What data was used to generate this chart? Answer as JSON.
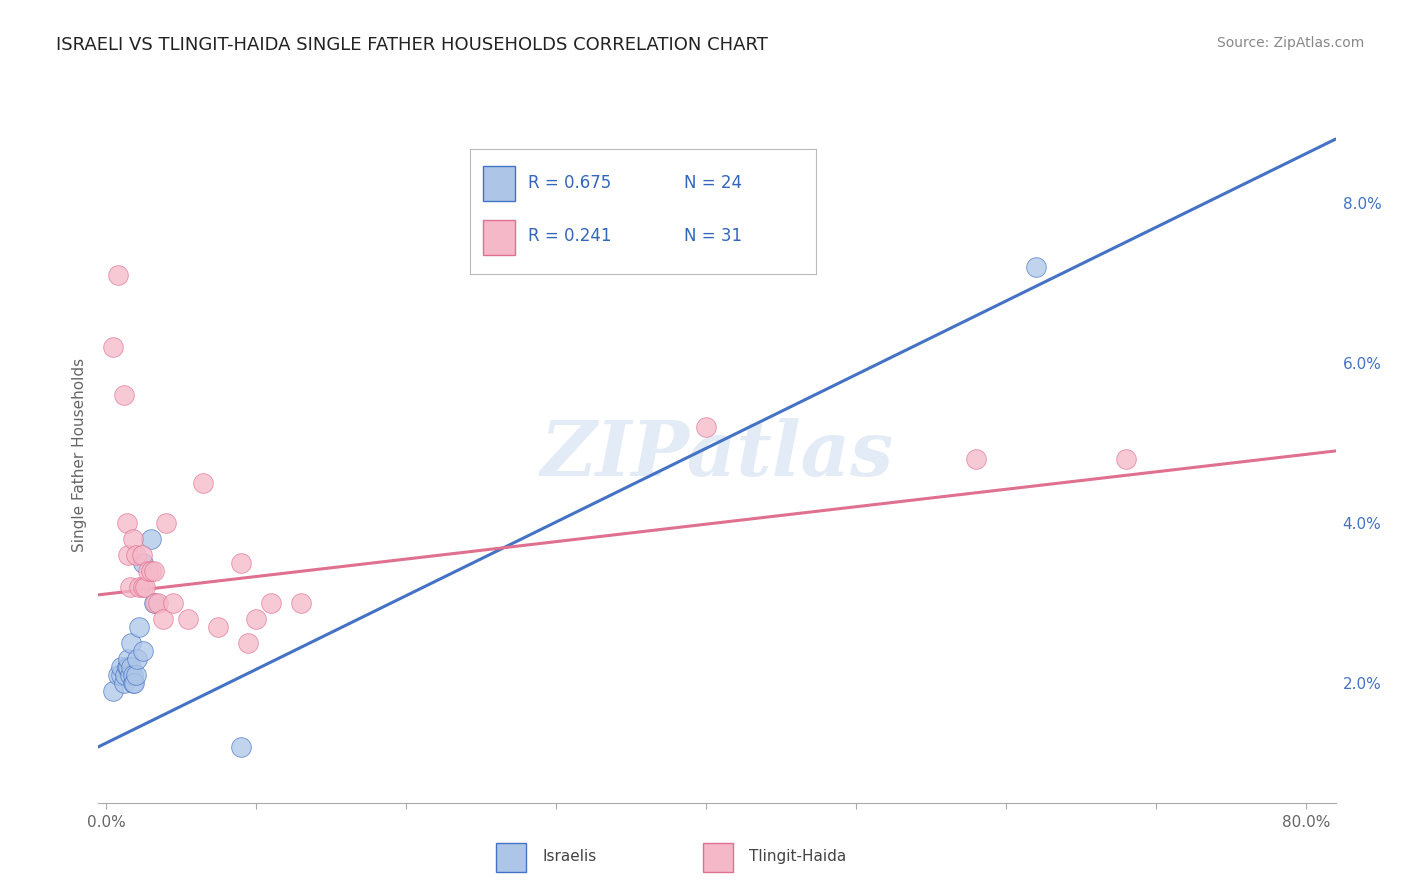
{
  "title": "ISRAELI VS TLINGIT-HAIDA SINGLE FATHER HOUSEHOLDS CORRELATION CHART",
  "source_text": "Source: ZipAtlas.com",
  "ylabel": "Single Father Households",
  "xlim": [
    -0.005,
    0.82
  ],
  "ylim": [
    0.005,
    0.092
  ],
  "x_ticks": [
    0.0,
    0.1,
    0.2,
    0.3,
    0.4,
    0.5,
    0.6,
    0.7,
    0.8
  ],
  "x_tick_labels": [
    "0.0%",
    "",
    "",
    "",
    "",
    "",
    "",
    "",
    "80.0%"
  ],
  "y_ticks": [
    0.02,
    0.04,
    0.06,
    0.08
  ],
  "y_tick_labels": [
    "2.0%",
    "4.0%",
    "6.0%",
    "8.0%"
  ],
  "legend_R_israeli": "R = 0.675",
  "legend_N_israeli": "N = 24",
  "legend_R_tlingit": "R = 0.241",
  "legend_N_tlingit": "N = 31",
  "israeli_color": "#adc6e8",
  "tlingit_color": "#f5b8c8",
  "trendline_israeli_color": "#4472c4",
  "trendline_tlingit_color": "#e07090",
  "watermark": "ZIPatlas",
  "background_color": "#ffffff",
  "grid_color": "#dddddd",
  "israeli_scatter_x": [
    0.005,
    0.008,
    0.01,
    0.01,
    0.012,
    0.013,
    0.014,
    0.015,
    0.015,
    0.016,
    0.017,
    0.017,
    0.018,
    0.018,
    0.019,
    0.02,
    0.021,
    0.022,
    0.025,
    0.025,
    0.03,
    0.032,
    0.09,
    0.62
  ],
  "israeli_scatter_y": [
    0.019,
    0.021,
    0.021,
    0.022,
    0.02,
    0.021,
    0.022,
    0.022,
    0.023,
    0.021,
    0.022,
    0.025,
    0.02,
    0.021,
    0.02,
    0.021,
    0.023,
    0.027,
    0.024,
    0.035,
    0.038,
    0.03,
    0.012,
    0.072
  ],
  "tlingit_scatter_x": [
    0.005,
    0.008,
    0.012,
    0.014,
    0.015,
    0.016,
    0.018,
    0.02,
    0.022,
    0.024,
    0.025,
    0.026,
    0.028,
    0.03,
    0.032,
    0.033,
    0.035,
    0.038,
    0.04,
    0.045,
    0.055,
    0.065,
    0.075,
    0.09,
    0.095,
    0.1,
    0.11,
    0.13,
    0.4,
    0.58,
    0.68
  ],
  "tlingit_scatter_y": [
    0.062,
    0.071,
    0.056,
    0.04,
    0.036,
    0.032,
    0.038,
    0.036,
    0.032,
    0.036,
    0.032,
    0.032,
    0.034,
    0.034,
    0.034,
    0.03,
    0.03,
    0.028,
    0.04,
    0.03,
    0.028,
    0.045,
    0.027,
    0.035,
    0.025,
    0.028,
    0.03,
    0.03,
    0.052,
    0.048,
    0.048
  ],
  "israeli_trend_x": [
    -0.005,
    0.82
  ],
  "israeli_trend_y": [
    0.012,
    0.088
  ],
  "tlingit_trend_x": [
    -0.005,
    0.82
  ],
  "tlingit_trend_y": [
    0.031,
    0.049
  ]
}
